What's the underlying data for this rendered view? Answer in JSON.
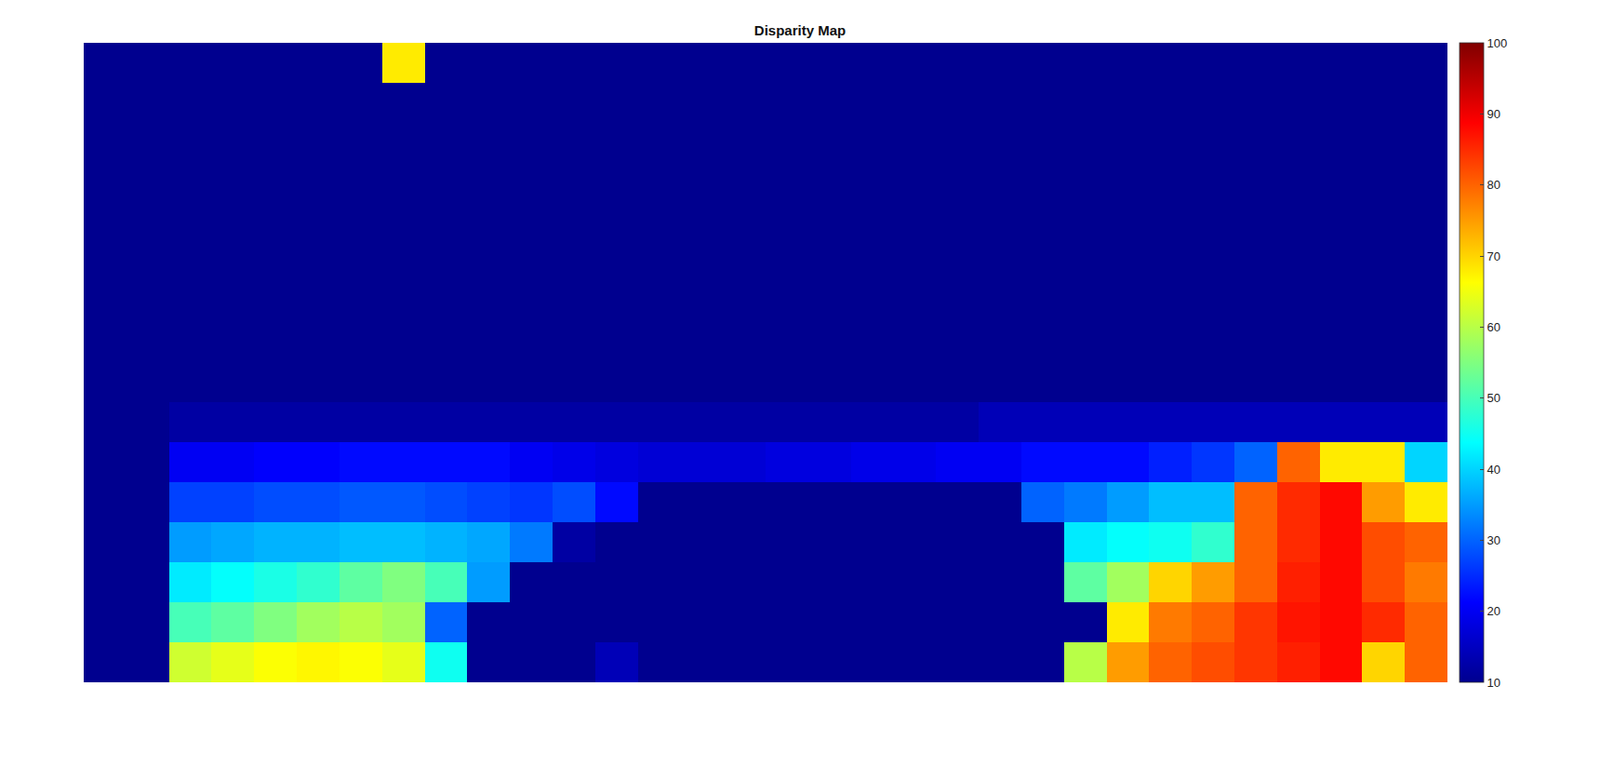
{
  "chart_data": {
    "type": "heatmap",
    "title": "Disparity Map",
    "color": "jet",
    "tick_labels": false,
    "colorbar_range": [
      10,
      100
    ],
    "colorbar_ticks": [
      10,
      20,
      30,
      40,
      50,
      60,
      70,
      80,
      90,
      100
    ],
    "cells": [
      [
        10,
        10,
        10,
        10,
        10,
        10,
        10,
        68,
        10,
        10,
        10,
        10,
        10,
        10,
        10,
        10,
        10,
        10,
        10,
        10,
        10,
        10,
        10,
        10,
        10,
        10,
        10,
        10,
        10,
        10,
        10,
        10
      ],
      [
        10,
        10,
        10,
        10,
        10,
        10,
        10,
        10,
        10,
        10,
        10,
        10,
        10,
        10,
        10,
        10,
        10,
        10,
        10,
        10,
        10,
        10,
        10,
        10,
        10,
        10,
        10,
        10,
        10,
        10,
        10,
        10
      ],
      [
        10,
        10,
        10,
        10,
        10,
        10,
        10,
        10,
        10,
        10,
        10,
        10,
        10,
        10,
        10,
        10,
        10,
        10,
        10,
        10,
        10,
        10,
        10,
        10,
        10,
        10,
        10,
        10,
        10,
        10,
        10,
        10
      ],
      [
        10,
        10,
        10,
        10,
        10,
        10,
        10,
        10,
        10,
        10,
        10,
        10,
        10,
        10,
        10,
        10,
        10,
        10,
        10,
        10,
        10,
        10,
        10,
        10,
        10,
        10,
        10,
        10,
        10,
        10,
        10,
        10
      ],
      [
        10,
        10,
        10,
        10,
        10,
        10,
        10,
        10,
        10,
        10,
        10,
        10,
        10,
        10,
        10,
        10,
        10,
        10,
        10,
        10,
        10,
        10,
        10,
        10,
        10,
        10,
        10,
        10,
        10,
        10,
        10,
        10
      ],
      [
        10,
        10,
        10,
        10,
        10,
        10,
        10,
        10,
        10,
        10,
        10,
        10,
        10,
        10,
        10,
        10,
        10,
        10,
        10,
        10,
        10,
        10,
        10,
        10,
        10,
        10,
        10,
        10,
        10,
        10,
        10,
        10
      ],
      [
        10,
        10,
        10,
        10,
        10,
        10,
        10,
        10,
        10,
        10,
        10,
        10,
        10,
        10,
        10,
        10,
        10,
        10,
        10,
        10,
        10,
        10,
        10,
        10,
        10,
        10,
        10,
        10,
        10,
        10,
        10,
        10
      ],
      [
        10,
        10,
        10,
        10,
        10,
        10,
        10,
        10,
        10,
        10,
        10,
        10,
        10,
        10,
        10,
        10,
        10,
        10,
        10,
        10,
        10,
        10,
        10,
        10,
        10,
        10,
        10,
        10,
        10,
        10,
        10,
        10
      ],
      [
        10,
        10,
        10,
        10,
        10,
        10,
        10,
        10,
        10,
        10,
        10,
        10,
        10,
        10,
        10,
        10,
        10,
        10,
        10,
        10,
        10,
        10,
        10,
        10,
        10,
        10,
        10,
        10,
        10,
        10,
        10,
        10
      ],
      [
        10,
        10,
        12,
        12,
        12,
        12,
        12,
        12,
        12,
        12,
        12,
        12,
        12,
        12,
        12,
        12,
        12,
        12,
        12,
        12,
        12,
        14,
        14,
        14,
        14,
        14,
        14,
        14,
        14,
        14,
        14,
        14
      ],
      [
        10,
        10,
        20,
        20,
        21,
        21,
        22,
        22,
        22,
        22,
        20,
        19,
        18,
        17,
        17,
        17,
        18,
        18,
        19,
        19,
        20,
        20,
        22,
        22,
        22,
        24,
        26,
        30,
        80,
        68,
        68,
        40
      ],
      [
        10,
        10,
        27,
        27,
        28,
        28,
        29,
        29,
        28,
        27,
        26,
        28,
        22,
        10,
        10,
        10,
        10,
        10,
        10,
        10,
        10,
        10,
        30,
        32,
        35,
        38,
        38,
        80,
        85,
        88,
        75,
        68
      ],
      [
        10,
        10,
        35,
        36,
        37,
        37,
        38,
        38,
        37,
        36,
        32,
        12,
        10,
        10,
        10,
        10,
        10,
        10,
        10,
        10,
        10,
        10,
        10,
        42,
        44,
        45,
        48,
        80,
        85,
        88,
        82,
        80
      ],
      [
        10,
        10,
        42,
        44,
        46,
        48,
        52,
        55,
        50,
        35,
        10,
        10,
        10,
        10,
        10,
        10,
        10,
        10,
        10,
        10,
        10,
        10,
        10,
        52,
        58,
        70,
        75,
        80,
        86,
        88,
        82,
        78
      ],
      [
        10,
        10,
        50,
        52,
        55,
        58,
        60,
        58,
        30,
        10,
        10,
        10,
        10,
        10,
        10,
        10,
        10,
        10,
        10,
        10,
        10,
        10,
        10,
        10,
        68,
        78,
        80,
        84,
        87,
        88,
        85,
        80
      ],
      [
        10,
        10,
        62,
        64,
        66,
        67,
        66,
        64,
        45,
        10,
        10,
        10,
        14,
        10,
        10,
        10,
        10,
        10,
        10,
        10,
        10,
        10,
        10,
        60,
        75,
        80,
        82,
        84,
        86,
        88,
        70,
        80
      ]
    ]
  }
}
